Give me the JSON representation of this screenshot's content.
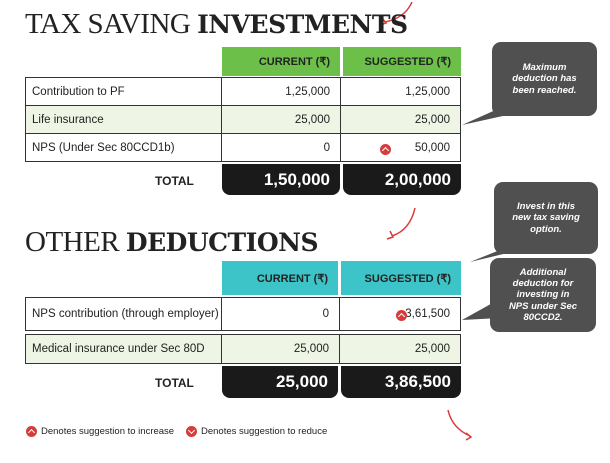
{
  "sections": [
    {
      "title_light": "TAX SAVING",
      "title_bold": "INVESTMENTS",
      "header": [
        "CURRENT (₹)",
        "SUGGESTED (₹)"
      ],
      "rows": [
        [
          "Contribution to PF",
          "1,25,000",
          "1,25,000"
        ],
        [
          "Life insurance",
          "25,000",
          "25,000"
        ],
        [
          "NPS (Under Sec 80CCD1b)",
          "0",
          "50,000"
        ]
      ],
      "total": [
        "TOTAL",
        "1,50,000",
        "2,00,000"
      ]
    },
    {
      "title_light": "OTHER",
      "title_bold": "DEDUCTIONS",
      "header": [
        "CURRENT (₹)",
        "SUGGESTED (₹)"
      ],
      "rows": [
        [
          "NPS contribution (through employer)",
          "0",
          "3,61,500"
        ],
        [
          "Medical insurance under Sec 80D",
          "25,000",
          "25,000"
        ]
      ],
      "total": [
        "TOTAL",
        "25,000",
        "3,86,500"
      ]
    }
  ],
  "callouts": [
    "Maximum deduction has been reached.",
    "Invest in this new tax saving option.",
    "Additional deduction for investing in NPS under Sec 80CCD2."
  ],
  "legend": [
    "Denotes suggestion to increase",
    "Denotes suggestion to reduce"
  ]
}
